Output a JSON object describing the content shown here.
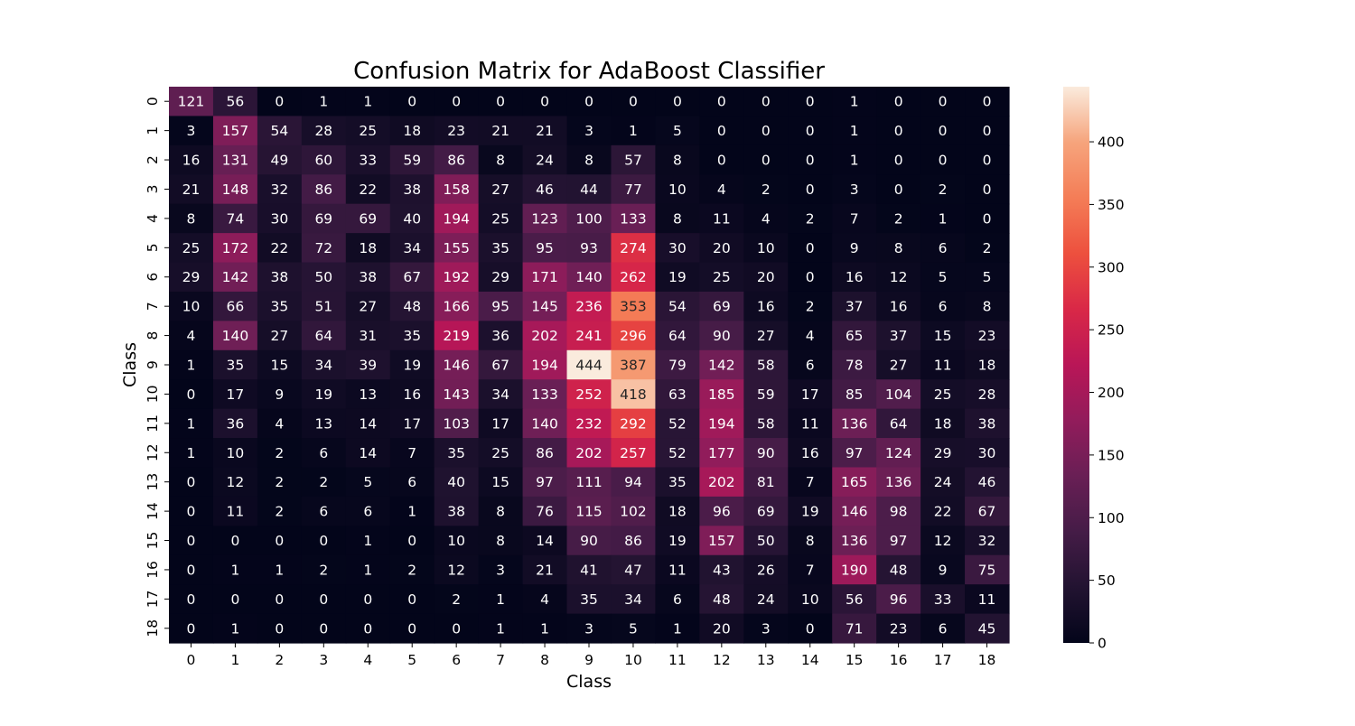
{
  "chart_data": {
    "type": "heatmap",
    "title": "Confusion Matrix for AdaBoost Classifier",
    "xlabel": "Class",
    "ylabel": "Class",
    "x_categories": [
      "0",
      "1",
      "2",
      "3",
      "4",
      "5",
      "6",
      "7",
      "8",
      "9",
      "10",
      "11",
      "12",
      "13",
      "14",
      "15",
      "16",
      "17",
      "18"
    ],
    "y_categories": [
      "0",
      "1",
      "2",
      "3",
      "4",
      "5",
      "6",
      "7",
      "8",
      "9",
      "10",
      "11",
      "12",
      "13",
      "14",
      "15",
      "16",
      "17",
      "18"
    ],
    "values": [
      [
        121,
        56,
        0,
        1,
        1,
        0,
        0,
        0,
        0,
        0,
        0,
        0,
        0,
        0,
        0,
        1,
        0,
        0,
        0
      ],
      [
        3,
        157,
        54,
        28,
        25,
        18,
        23,
        21,
        21,
        3,
        1,
        5,
        0,
        0,
        0,
        1,
        0,
        0,
        0
      ],
      [
        16,
        131,
        49,
        60,
        33,
        59,
        86,
        8,
        24,
        8,
        57,
        8,
        0,
        0,
        0,
        1,
        0,
        0,
        0
      ],
      [
        21,
        148,
        32,
        86,
        22,
        38,
        158,
        27,
        46,
        44,
        77,
        10,
        4,
        2,
        0,
        3,
        0,
        2,
        0
      ],
      [
        8,
        74,
        30,
        69,
        69,
        40,
        194,
        25,
        123,
        100,
        133,
        8,
        11,
        4,
        2,
        7,
        2,
        1,
        0
      ],
      [
        25,
        172,
        22,
        72,
        18,
        34,
        155,
        35,
        95,
        93,
        274,
        30,
        20,
        10,
        0,
        9,
        8,
        6,
        2
      ],
      [
        29,
        142,
        38,
        50,
        38,
        67,
        192,
        29,
        171,
        140,
        262,
        19,
        25,
        20,
        0,
        16,
        12,
        5,
        5
      ],
      [
        10,
        66,
        35,
        51,
        27,
        48,
        166,
        95,
        145,
        236,
        353,
        54,
        69,
        16,
        2,
        37,
        16,
        6,
        8
      ],
      [
        4,
        140,
        27,
        64,
        31,
        35,
        219,
        36,
        202,
        241,
        296,
        64,
        90,
        27,
        4,
        65,
        37,
        15,
        23
      ],
      [
        1,
        35,
        15,
        34,
        39,
        19,
        146,
        67,
        194,
        444,
        387,
        79,
        142,
        58,
        6,
        78,
        27,
        11,
        18
      ],
      [
        0,
        17,
        9,
        19,
        13,
        16,
        143,
        34,
        133,
        252,
        418,
        63,
        185,
        59,
        17,
        85,
        104,
        25,
        28
      ],
      [
        1,
        36,
        4,
        13,
        14,
        17,
        103,
        17,
        140,
        232,
        292,
        52,
        194,
        58,
        11,
        136,
        64,
        18,
        38
      ],
      [
        1,
        10,
        2,
        6,
        14,
        7,
        35,
        25,
        86,
        202,
        257,
        52,
        177,
        90,
        16,
        97,
        124,
        29,
        30
      ],
      [
        0,
        12,
        2,
        2,
        5,
        6,
        40,
        15,
        97,
        111,
        94,
        35,
        202,
        81,
        7,
        165,
        136,
        24,
        46
      ],
      [
        0,
        11,
        2,
        6,
        6,
        1,
        38,
        8,
        76,
        115,
        102,
        18,
        96,
        69,
        19,
        146,
        98,
        22,
        67
      ],
      [
        0,
        0,
        0,
        0,
        1,
        0,
        10,
        8,
        14,
        90,
        86,
        19,
        157,
        50,
        8,
        136,
        97,
        12,
        32
      ],
      [
        0,
        1,
        1,
        2,
        1,
        2,
        12,
        3,
        21,
        41,
        47,
        11,
        43,
        26,
        7,
        190,
        48,
        9,
        75
      ],
      [
        0,
        0,
        0,
        0,
        0,
        0,
        2,
        1,
        4,
        35,
        34,
        6,
        48,
        24,
        10,
        56,
        96,
        33,
        11
      ],
      [
        0,
        1,
        0,
        0,
        0,
        0,
        0,
        1,
        1,
        3,
        5,
        1,
        20,
        3,
        0,
        71,
        23,
        6,
        45
      ]
    ],
    "colorbar": {
      "min": 0,
      "max": 444,
      "ticks": [
        0,
        50,
        100,
        150,
        200,
        250,
        300,
        350,
        400
      ]
    },
    "colormap": "rocket",
    "text_colors": {
      "dark_bg": "#ffffff",
      "light_bg": "#262626"
    }
  }
}
